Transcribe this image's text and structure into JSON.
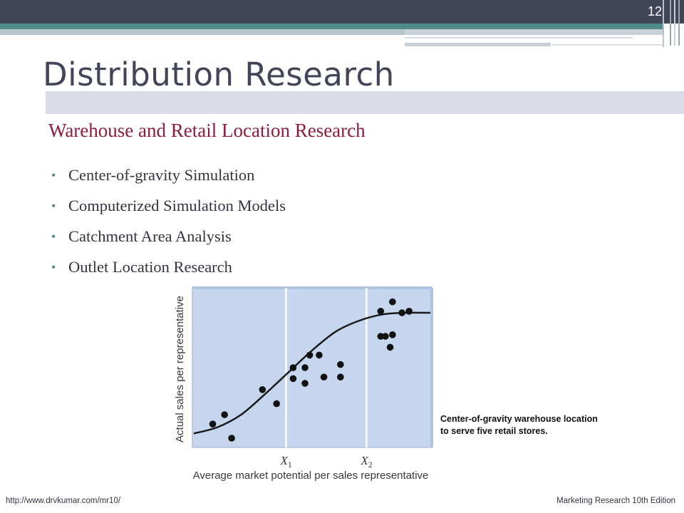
{
  "slide": {
    "number": "12",
    "title": "Distribution Research",
    "subtitle": "Warehouse and Retail Location Research",
    "bullets": [
      "Center-of-gravity Simulation",
      "Computerized Simulation Models",
      "Catchment Area Analysis",
      "Outlet Location Research"
    ],
    "caption": "Center-of-gravity warehouse location to serve five retail stores.",
    "footer_left": "http://www.drvkumar.com/mr10/",
    "footer_right": "Marketing Research 10th Edition"
  },
  "colors": {
    "header_dark": "#424457",
    "accent_teal": "#4f8a8b",
    "subtitle": "#8e1b3c",
    "plot_background": "#c5d6ee"
  },
  "chart_data": {
    "type": "scatter",
    "title": "",
    "xlabel": "Average market potential per sales representative",
    "ylabel": "Actual sales per representative",
    "x_marker_labels": [
      "X",
      "X"
    ],
    "x_marker_subscripts": [
      "1",
      "2"
    ],
    "x_markers": [
      0.39,
      0.73
    ],
    "xlim": [
      0,
      1
    ],
    "ylim": [
      0,
      1
    ],
    "grid": false,
    "points": [
      {
        "x": 0.08,
        "y": 0.14
      },
      {
        "x": 0.13,
        "y": 0.2
      },
      {
        "x": 0.16,
        "y": 0.05
      },
      {
        "x": 0.29,
        "y": 0.36
      },
      {
        "x": 0.35,
        "y": 0.27
      },
      {
        "x": 0.42,
        "y": 0.5
      },
      {
        "x": 0.42,
        "y": 0.43
      },
      {
        "x": 0.47,
        "y": 0.5
      },
      {
        "x": 0.47,
        "y": 0.4
      },
      {
        "x": 0.49,
        "y": 0.58
      },
      {
        "x": 0.53,
        "y": 0.58
      },
      {
        "x": 0.55,
        "y": 0.44
      },
      {
        "x": 0.62,
        "y": 0.52
      },
      {
        "x": 0.62,
        "y": 0.44
      },
      {
        "x": 0.79,
        "y": 0.86
      },
      {
        "x": 0.84,
        "y": 0.92
      },
      {
        "x": 0.79,
        "y": 0.7
      },
      {
        "x": 0.81,
        "y": 0.7
      },
      {
        "x": 0.84,
        "y": 0.71
      },
      {
        "x": 0.83,
        "y": 0.63
      },
      {
        "x": 0.88,
        "y": 0.85
      },
      {
        "x": 0.91,
        "y": 0.86
      }
    ],
    "curve": [
      [
        0,
        0.08
      ],
      [
        0.1,
        0.12
      ],
      [
        0.2,
        0.2
      ],
      [
        0.3,
        0.33
      ],
      [
        0.4,
        0.47
      ],
      [
        0.5,
        0.61
      ],
      [
        0.6,
        0.73
      ],
      [
        0.7,
        0.8
      ],
      [
        0.8,
        0.84
      ],
      [
        0.9,
        0.85
      ],
      [
        1.0,
        0.85
      ]
    ]
  }
}
